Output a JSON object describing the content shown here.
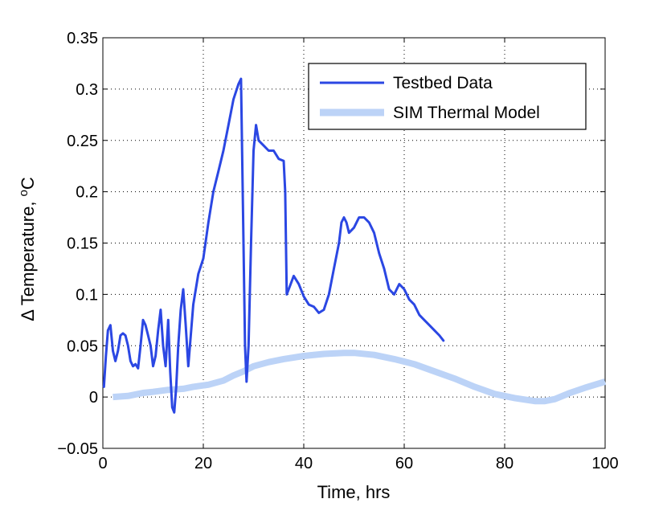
{
  "chart_data": {
    "type": "line",
    "title": "",
    "xlabel": "Time,  hrs",
    "ylabel_prefix": "Δ Temperature, ",
    "ylabel_sup": "o",
    "ylabel_suffix": "C",
    "xlim": [
      0,
      100
    ],
    "ylim": [
      -0.05,
      0.35
    ],
    "grid": true,
    "legend_position": "top-right",
    "x_ticks": [
      0,
      20,
      40,
      60,
      80,
      100
    ],
    "x_tick_labels": [
      "0",
      "20",
      "40",
      "60",
      "80",
      "100"
    ],
    "y_ticks": [
      -0.05,
      0,
      0.05,
      0.1,
      0.15,
      0.2,
      0.25,
      0.3,
      0.35
    ],
    "y_tick_labels": [
      "−0.05",
      "0",
      "0.05",
      "0.1",
      "0.15",
      "0.2",
      "0.25",
      "0.3",
      "0.35"
    ],
    "series": [
      {
        "name": "Testbed Data",
        "color": "#2b47e3",
        "x": [
          0.2,
          0.6,
          1,
          1.5,
          2,
          2.5,
          3,
          3.5,
          4,
          4.5,
          5,
          5.5,
          6,
          6.5,
          7,
          7.5,
          8,
          8.5,
          9,
          9.5,
          10,
          10.5,
          11,
          11.5,
          12,
          12.5,
          13,
          13.4,
          13.8,
          14.2,
          14.6,
          15,
          15.5,
          16,
          16.5,
          17,
          18,
          19,
          20,
          21,
          22,
          23,
          24,
          25,
          26,
          27,
          27.5,
          28,
          28.3,
          28.6,
          29,
          29.5,
          30,
          30.5,
          31,
          32,
          33,
          34,
          35,
          36,
          36.3,
          36.6,
          37,
          38,
          39,
          40,
          41,
          42,
          43,
          44,
          45,
          46,
          47,
          47.5,
          48,
          48.5,
          49,
          50,
          51,
          52,
          53,
          54,
          55,
          56,
          57,
          58,
          59,
          60,
          61,
          62,
          63,
          64,
          65,
          66,
          67,
          67.8
        ],
        "y": [
          0.01,
          0.04,
          0.065,
          0.07,
          0.045,
          0.035,
          0.045,
          0.06,
          0.062,
          0.06,
          0.05,
          0.035,
          0.03,
          0.032,
          0.028,
          0.05,
          0.075,
          0.07,
          0.06,
          0.05,
          0.03,
          0.04,
          0.065,
          0.085,
          0.05,
          0.03,
          0.075,
          0.025,
          -0.01,
          -0.015,
          0.01,
          0.05,
          0.085,
          0.105,
          0.07,
          0.03,
          0.09,
          0.12,
          0.135,
          0.17,
          0.2,
          0.22,
          0.24,
          0.265,
          0.29,
          0.305,
          0.31,
          0.15,
          0.05,
          0.015,
          0.05,
          0.15,
          0.24,
          0.265,
          0.25,
          0.245,
          0.24,
          0.24,
          0.232,
          0.23,
          0.2,
          0.1,
          0.105,
          0.118,
          0.11,
          0.098,
          0.09,
          0.088,
          0.082,
          0.085,
          0.1,
          0.125,
          0.15,
          0.17,
          0.175,
          0.17,
          0.16,
          0.165,
          0.175,
          0.175,
          0.17,
          0.16,
          0.14,
          0.125,
          0.105,
          0.1,
          0.11,
          0.105,
          0.095,
          0.09,
          0.08,
          0.075,
          0.07,
          0.065,
          0.06,
          0.055
        ]
      },
      {
        "name": "SIM Thermal Model",
        "color": "#bcd3f7",
        "x": [
          2,
          5,
          8,
          10,
          13,
          16,
          18,
          21,
          24,
          26,
          28,
          30,
          33,
          36,
          40,
          44,
          48,
          50,
          54,
          58,
          62,
          66,
          70,
          74,
          78,
          82,
          86,
          88,
          90,
          93,
          96,
          100
        ],
        "y": [
          0,
          0.001,
          0.004,
          0.005,
          0.007,
          0.008,
          0.01,
          0.012,
          0.016,
          0.021,
          0.025,
          0.03,
          0.034,
          0.037,
          0.04,
          0.042,
          0.043,
          0.043,
          0.041,
          0.037,
          0.032,
          0.025,
          0.018,
          0.01,
          0.003,
          -0.001,
          -0.004,
          -0.004,
          -0.002,
          0.004,
          0.009,
          0.015
        ]
      }
    ]
  }
}
